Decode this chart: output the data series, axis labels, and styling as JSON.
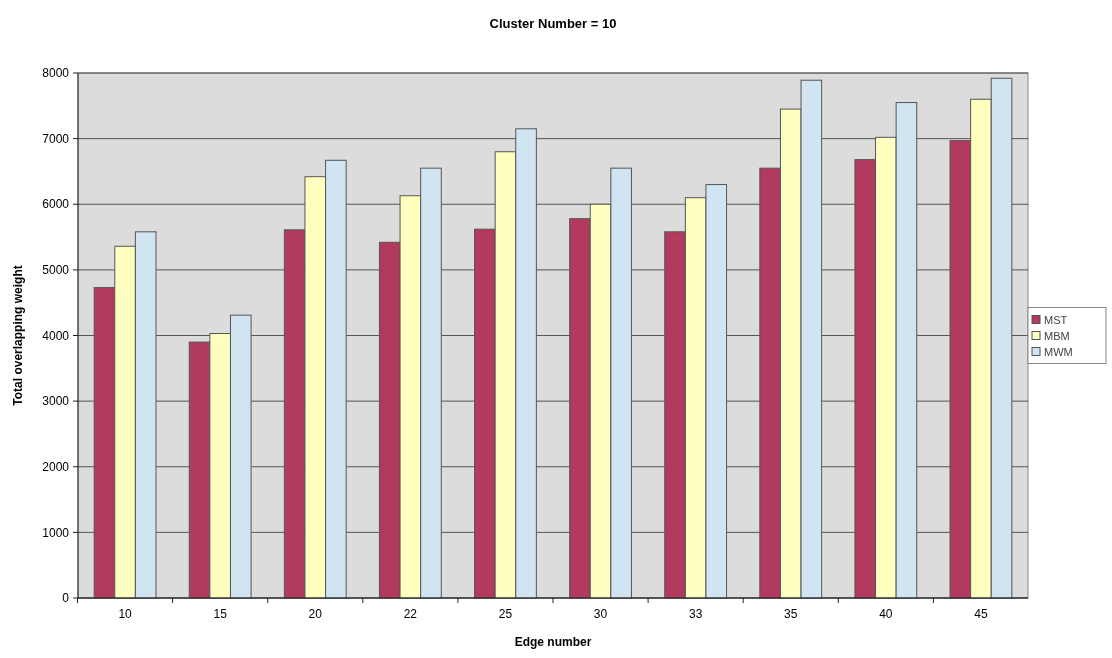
{
  "chart_data": {
    "type": "bar",
    "title": "Cluster Number = 10",
    "xlabel": "Edge number",
    "ylabel": "Total overlapping weight",
    "categories": [
      "10",
      "15",
      "20",
      "22",
      "25",
      "30",
      "33",
      "35",
      "40",
      "45"
    ],
    "series": [
      {
        "name": "MST",
        "color": "#b23a5e",
        "values": [
          4730,
          3900,
          5610,
          5420,
          5620,
          5780,
          5580,
          6550,
          6680,
          6970
        ]
      },
      {
        "name": "MBM",
        "color": "#ffffc0",
        "values": [
          5360,
          4030,
          6420,
          6130,
          6800,
          6000,
          6100,
          7450,
          7020,
          7600
        ]
      },
      {
        "name": "MWM",
        "color": "#d0e4f2",
        "values": [
          5580,
          4310,
          6670,
          6550,
          7150,
          6550,
          6300,
          7890,
          7550,
          7920
        ]
      }
    ],
    "ylim": [
      0,
      8000
    ],
    "yticks": [
      0,
      1000,
      2000,
      3000,
      4000,
      5000,
      6000,
      7000,
      8000
    ],
    "grid": "y",
    "legend": "right"
  }
}
